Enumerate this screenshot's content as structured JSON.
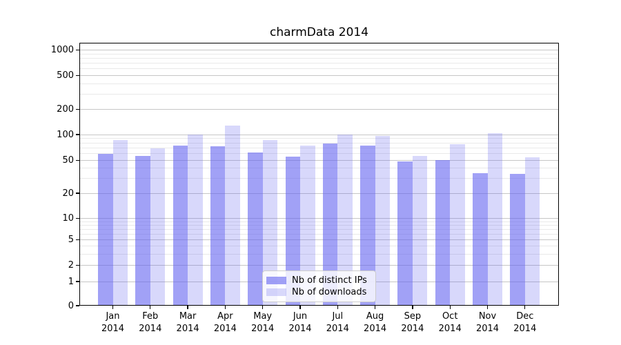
{
  "window": {
    "background": "#ffffff"
  },
  "chart_data": {
    "type": "bar",
    "title": "charmData 2014",
    "categories": [
      "Jan",
      "Feb",
      "Mar",
      "Apr",
      "May",
      "Jun",
      "Jul",
      "Aug",
      "Sep",
      "Oct",
      "Nov",
      "Dec"
    ],
    "category_year": "2014",
    "series": [
      {
        "name": "Nb of distinct IPs",
        "color": "rgba(98,98,240,0.60)",
        "values": [
          60,
          56,
          75,
          73,
          62,
          55,
          79,
          74,
          48,
          50,
          35,
          34
        ]
      },
      {
        "name": "Nb of downloads",
        "color": "rgba(98,98,240,0.25)",
        "values": [
          87,
          69,
          100,
          129,
          87,
          75,
          101,
          96,
          56,
          77,
          103,
          54
        ]
      }
    ],
    "xlabel": "",
    "ylabel": "",
    "y_scale": "symlog",
    "ylim": [
      0,
      1200
    ],
    "y_ticks": [
      0,
      1,
      2,
      5,
      10,
      20,
      50,
      100,
      200,
      500,
      1000
    ],
    "y_minor_ticks": [
      3,
      4,
      6,
      7,
      8,
      9,
      30,
      40,
      60,
      70,
      80,
      90,
      300,
      400,
      600,
      700,
      800,
      900
    ],
    "grid": true,
    "legend_position": "lower center"
  },
  "colors": {
    "grid_major": "#c6c6c6",
    "grid_minor": "#e9e9e9",
    "axis": "#000000",
    "text": "#000000",
    "legend_border": "#cccccc",
    "legend_background": "rgba(255,255,255,0.8)"
  }
}
